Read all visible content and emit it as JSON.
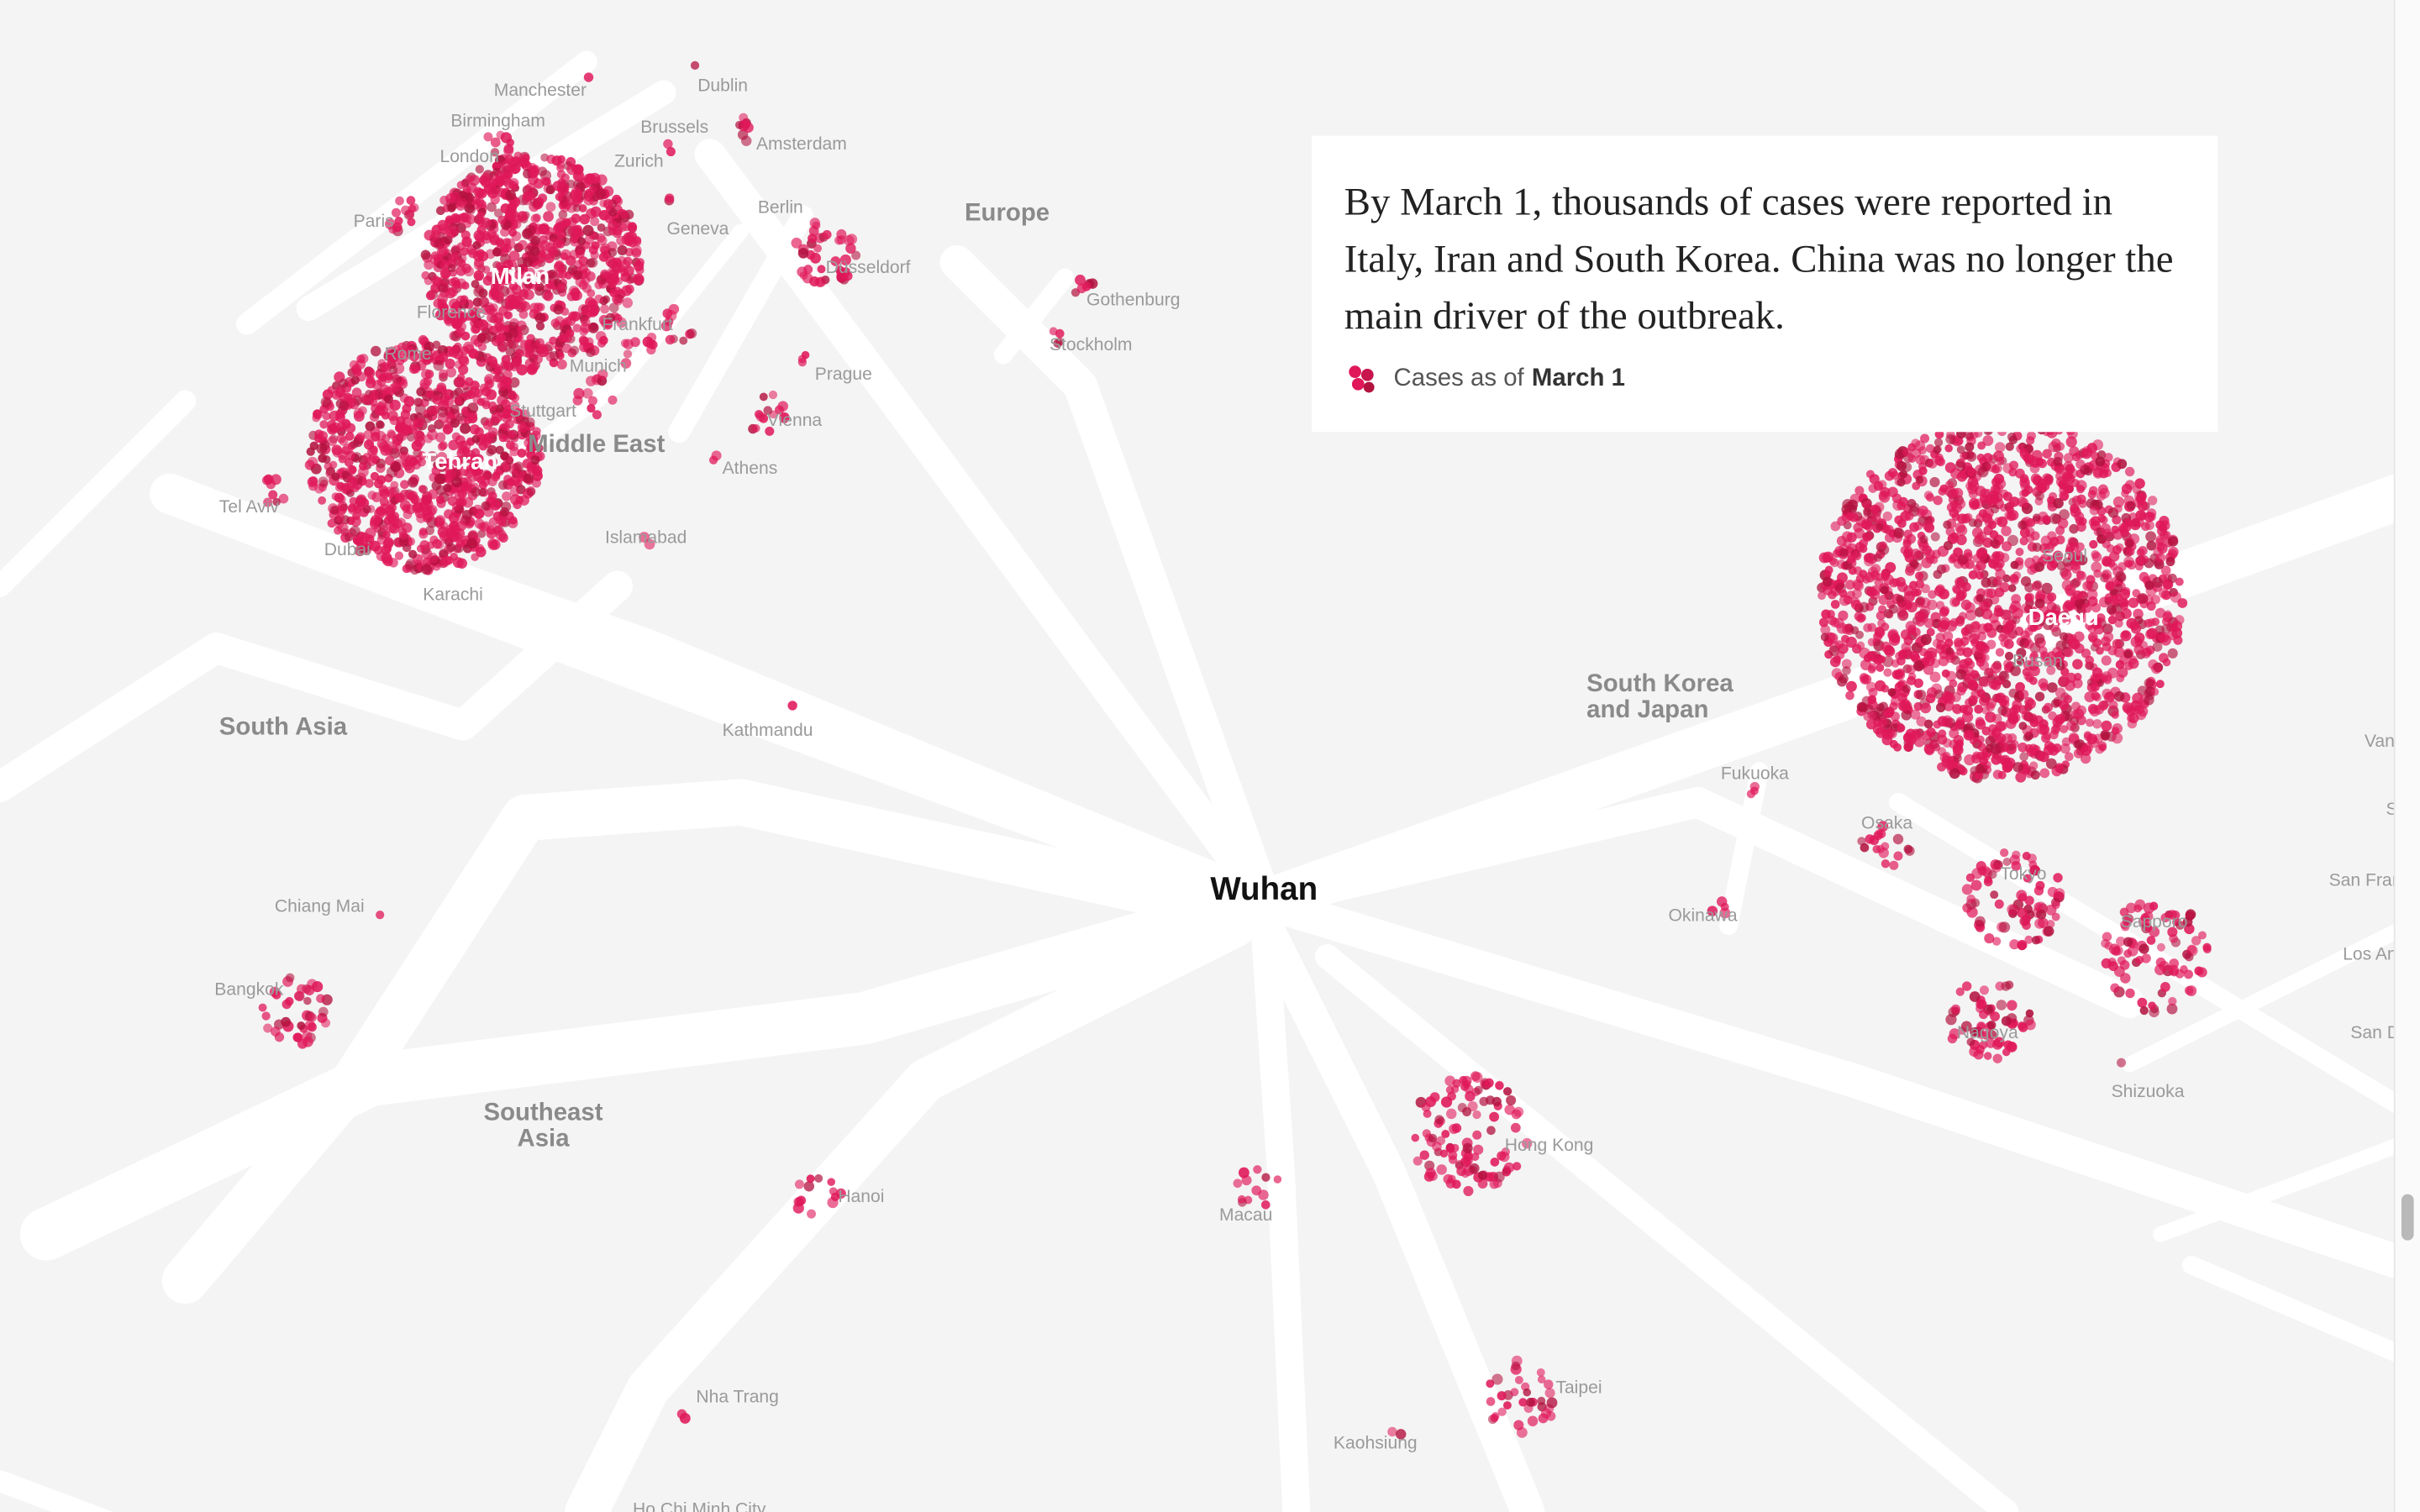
{
  "caption": {
    "text": "By March 1, thousands of cases were reported in Italy, Iran and South Korea. China was no longer the main driver of the outbreak.",
    "legend_prefix": "Cases as of",
    "legend_date": "March 1",
    "legend_icon": "case-cluster-icon"
  },
  "colors": {
    "background": "#f4f4f4",
    "route": "#ffffff",
    "case_dot": "#e0185a",
    "case_dot_dark": "#b3123f"
  },
  "center_label": "Wuhan",
  "region_labels": [
    "Europe",
    "Middle East",
    "South Asia",
    "South Korea",
    "and Japan",
    "Southeast",
    "Asia"
  ],
  "hub_labels": [
    "Milan",
    "Tehran",
    "Daegu"
  ],
  "city_labels": [
    "Manchester",
    "Dublin",
    "Birmingham",
    "Brussels",
    "Amsterdam",
    "London",
    "Zurich",
    "Paris",
    "Geneva",
    "Berlin",
    "Düsseldorf",
    "Florence",
    "Frankfurt",
    "Munich",
    "Gothenburg",
    "Stockholm",
    "Rome",
    "Stuttgart",
    "Prague",
    "Vienna",
    "Athens",
    "Tel Aviv",
    "Dubai",
    "Islamabad",
    "Karachi",
    "Kathmandu",
    "Seoul",
    "Busan",
    "Fukuoka",
    "Osaka",
    "Tokyo",
    "Okinawa",
    "Sapporo",
    "Nagoya",
    "Shizuoka",
    "Chiang Mai",
    "Bangkok",
    "Hong Kong",
    "Hanoi",
    "Macau",
    "Nha Trang",
    "Taipei",
    "Kaohsiung",
    "Ho Chi Minh City",
    "Van",
    "S",
    "San Fran",
    "Los An",
    "San D"
  ]
}
